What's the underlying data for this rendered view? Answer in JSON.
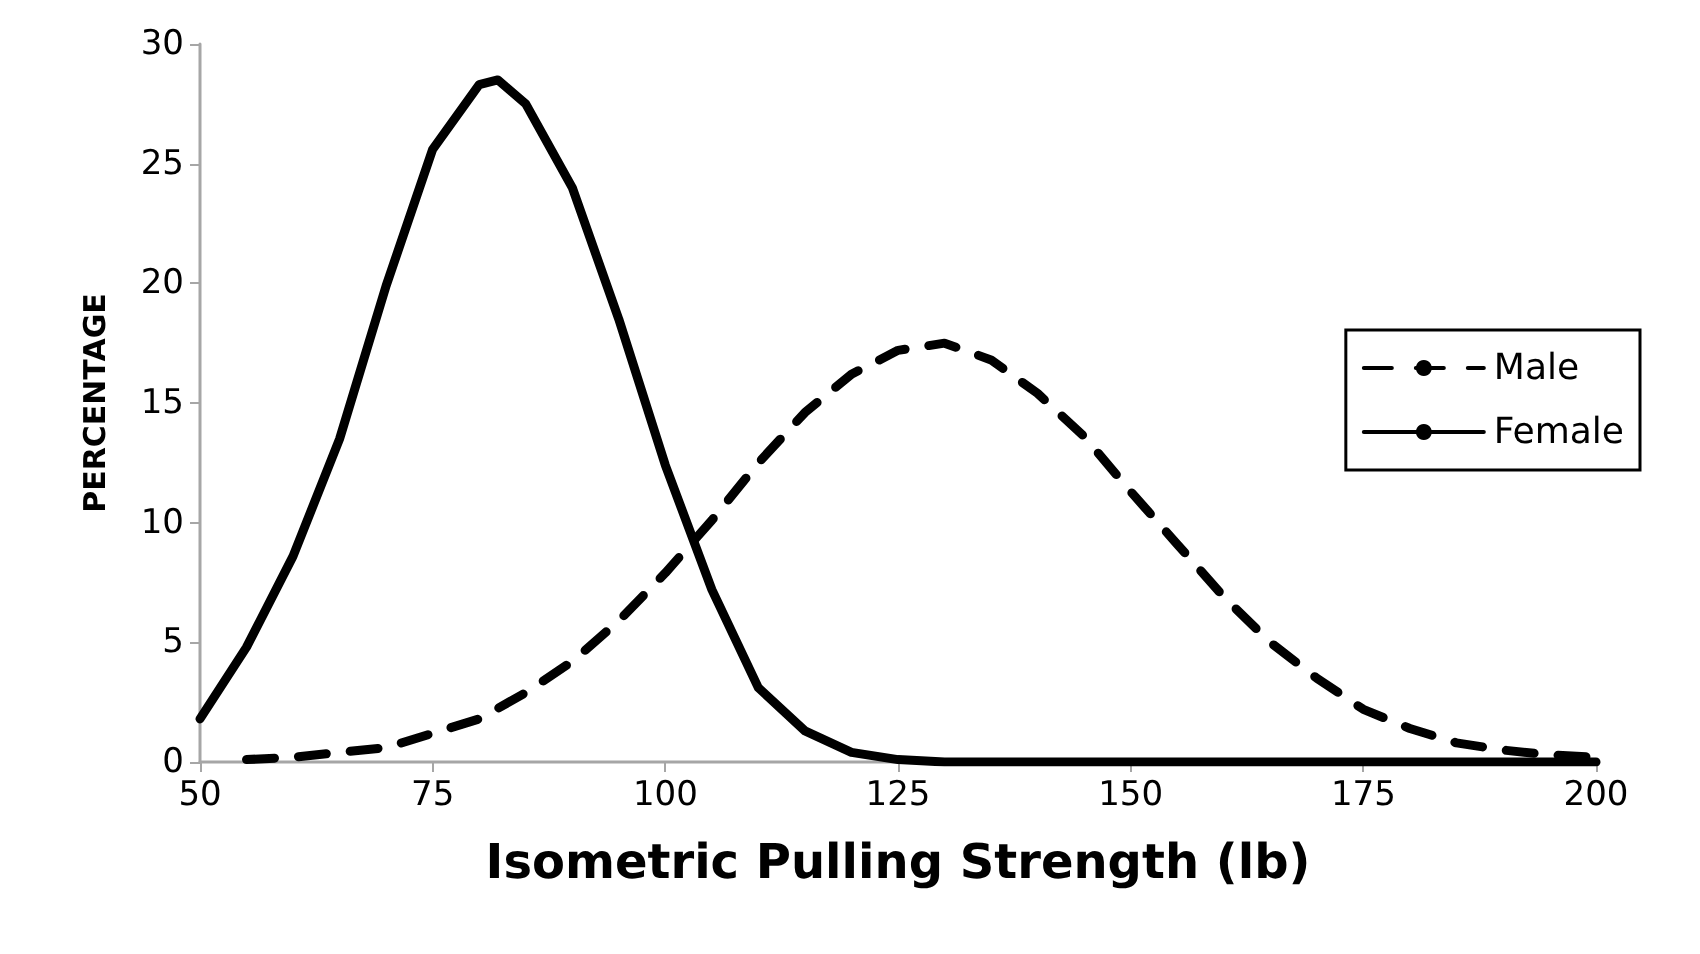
{
  "chart_data": {
    "type": "line",
    "xlabel": "Isometric Pulling Strength (lb)",
    "ylabel": "PERCENTAGE",
    "xlim": [
      50,
      200
    ],
    "xticks": [
      50,
      75,
      100,
      125,
      150,
      175,
      200
    ],
    "ylim": [
      0,
      30
    ],
    "yticks": [
      0,
      5,
      10,
      15,
      20,
      25,
      30
    ],
    "grid": false,
    "legend": "right",
    "marker": "none",
    "series": [
      {
        "name": "Male",
        "color": "#000000",
        "line_style": "dashed",
        "x": [
          55,
          60,
          65,
          70,
          75,
          80,
          85,
          90,
          95,
          100,
          105,
          110,
          115,
          120,
          125,
          130,
          135,
          140,
          145,
          150,
          155,
          160,
          165,
          170,
          175,
          180,
          185,
          190,
          195,
          200
        ],
        "values": [
          0.1,
          0.2,
          0.4,
          0.6,
          1.2,
          1.8,
          2.9,
          4.2,
          5.9,
          7.9,
          10.1,
          12.5,
          14.6,
          16.2,
          17.2,
          17.5,
          16.8,
          15.4,
          13.6,
          11.3,
          9.1,
          6.9,
          5.0,
          3.5,
          2.2,
          1.4,
          0.8,
          0.5,
          0.3,
          0.2
        ]
      },
      {
        "name": "Female",
        "color": "#000000",
        "line_style": "solid",
        "x": [
          50,
          55,
          60,
          65,
          70,
          75,
          80,
          82,
          85,
          90,
          95,
          100,
          105,
          110,
          115,
          120,
          125,
          130,
          140,
          150,
          175,
          200
        ],
        "values": [
          1.8,
          4.8,
          8.6,
          13.5,
          19.9,
          25.6,
          28.3,
          28.5,
          27.5,
          24,
          18.5,
          12.4,
          7.2,
          3.1,
          1.3,
          0.4,
          0.1,
          0,
          0,
          0,
          0,
          0
        ]
      }
    ]
  }
}
